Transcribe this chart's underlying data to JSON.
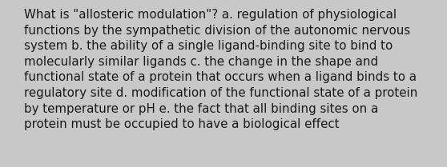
{
  "lines": [
    "What is \"allosteric modulation\"? a. regulation of physiological",
    "functions by the sympathetic division of the autonomic nervous",
    "system b. the ability of a single ligand-binding site to bind to",
    "molecularly similar ligands c. the change in the shape and",
    "functional state of a protein that occurs when a ligand binds to a",
    "regulatory site d. modification of the functional state of a protein",
    "by temperature or pH e. the fact that all binding sites on a",
    "protein must be occupied to have a biological effect"
  ],
  "background_color": "#c8c8c8",
  "text_color": "#1a1a1a",
  "font_size": 10.8,
  "font_family": "DejaVu Sans",
  "fig_width": 5.58,
  "fig_height": 2.09,
  "dpi": 100
}
